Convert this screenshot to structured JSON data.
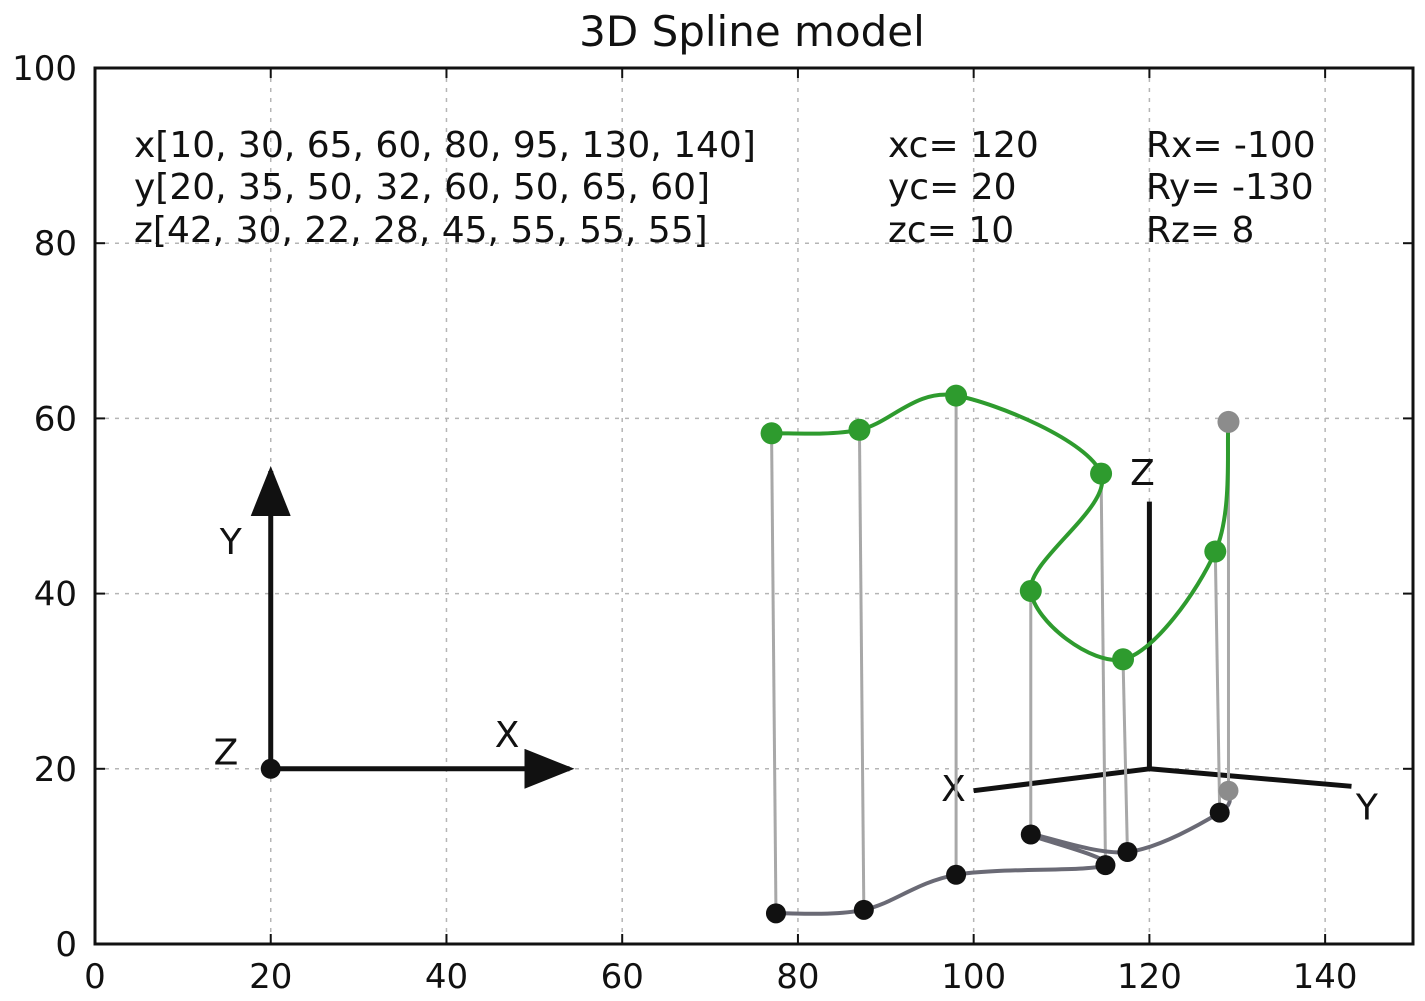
{
  "chart_data": {
    "type": "line",
    "title": "3D Spline model",
    "xlabel": "",
    "ylabel": "",
    "xlim": [
      0,
      150
    ],
    "ylim": [
      0,
      100
    ],
    "xticks": [
      0,
      20,
      40,
      60,
      80,
      100,
      120,
      140
    ],
    "yticks": [
      0,
      20,
      40,
      60,
      80,
      100
    ],
    "grid": true,
    "annotations": {
      "x_list": "x[10, 30, 65, 60, 80, 95, 130, 140]",
      "y_list": "y[20, 35, 50, 32, 60, 50, 65, 60]",
      "z_list": "z[42, 30, 22, 28, 45, 55, 55, 55]",
      "xc": "xc= 120",
      "yc": "yc= 20",
      "zc": "zc= 10",
      "rx": "Rx=  -100",
      "ry": "Ry=  -130",
      "rz": "Rz=   8"
    },
    "left_axes": {
      "origin": [
        20,
        20
      ],
      "x_arrow_end": [
        54,
        20
      ],
      "y_arrow_end": [
        20,
        54
      ],
      "labels": {
        "x": "X",
        "y": "Y",
        "z": "Z"
      }
    },
    "right_axes": {
      "origin": [
        120,
        20
      ],
      "x_end": [
        100,
        17.5
      ],
      "y_end": [
        143,
        18
      ],
      "z_end": [
        120,
        50.5
      ],
      "labels": {
        "x": "X",
        "y": "Y",
        "z": "Z"
      }
    },
    "series": [
      {
        "color": "#2e9b2e",
        "points": [
          [
            77,
            58.3
          ],
          [
            87,
            58.7
          ],
          [
            98,
            62.6
          ],
          [
            114.5,
            53.7
          ],
          [
            106.5,
            40.3
          ],
          [
            117,
            32.5
          ],
          [
            127.5,
            44.8
          ],
          [
            129,
            59.6
          ]
        ]
      },
      {
        "color": "#111111",
        "points": [
          [
            77.5,
            3.5
          ],
          [
            87.5,
            3.9
          ],
          [
            98,
            7.9
          ],
          [
            115,
            9
          ],
          [
            106.5,
            12.5
          ],
          [
            117.5,
            10.5
          ],
          [
            128,
            15
          ],
          [
            129,
            17.5
          ]
        ]
      }
    ]
  }
}
